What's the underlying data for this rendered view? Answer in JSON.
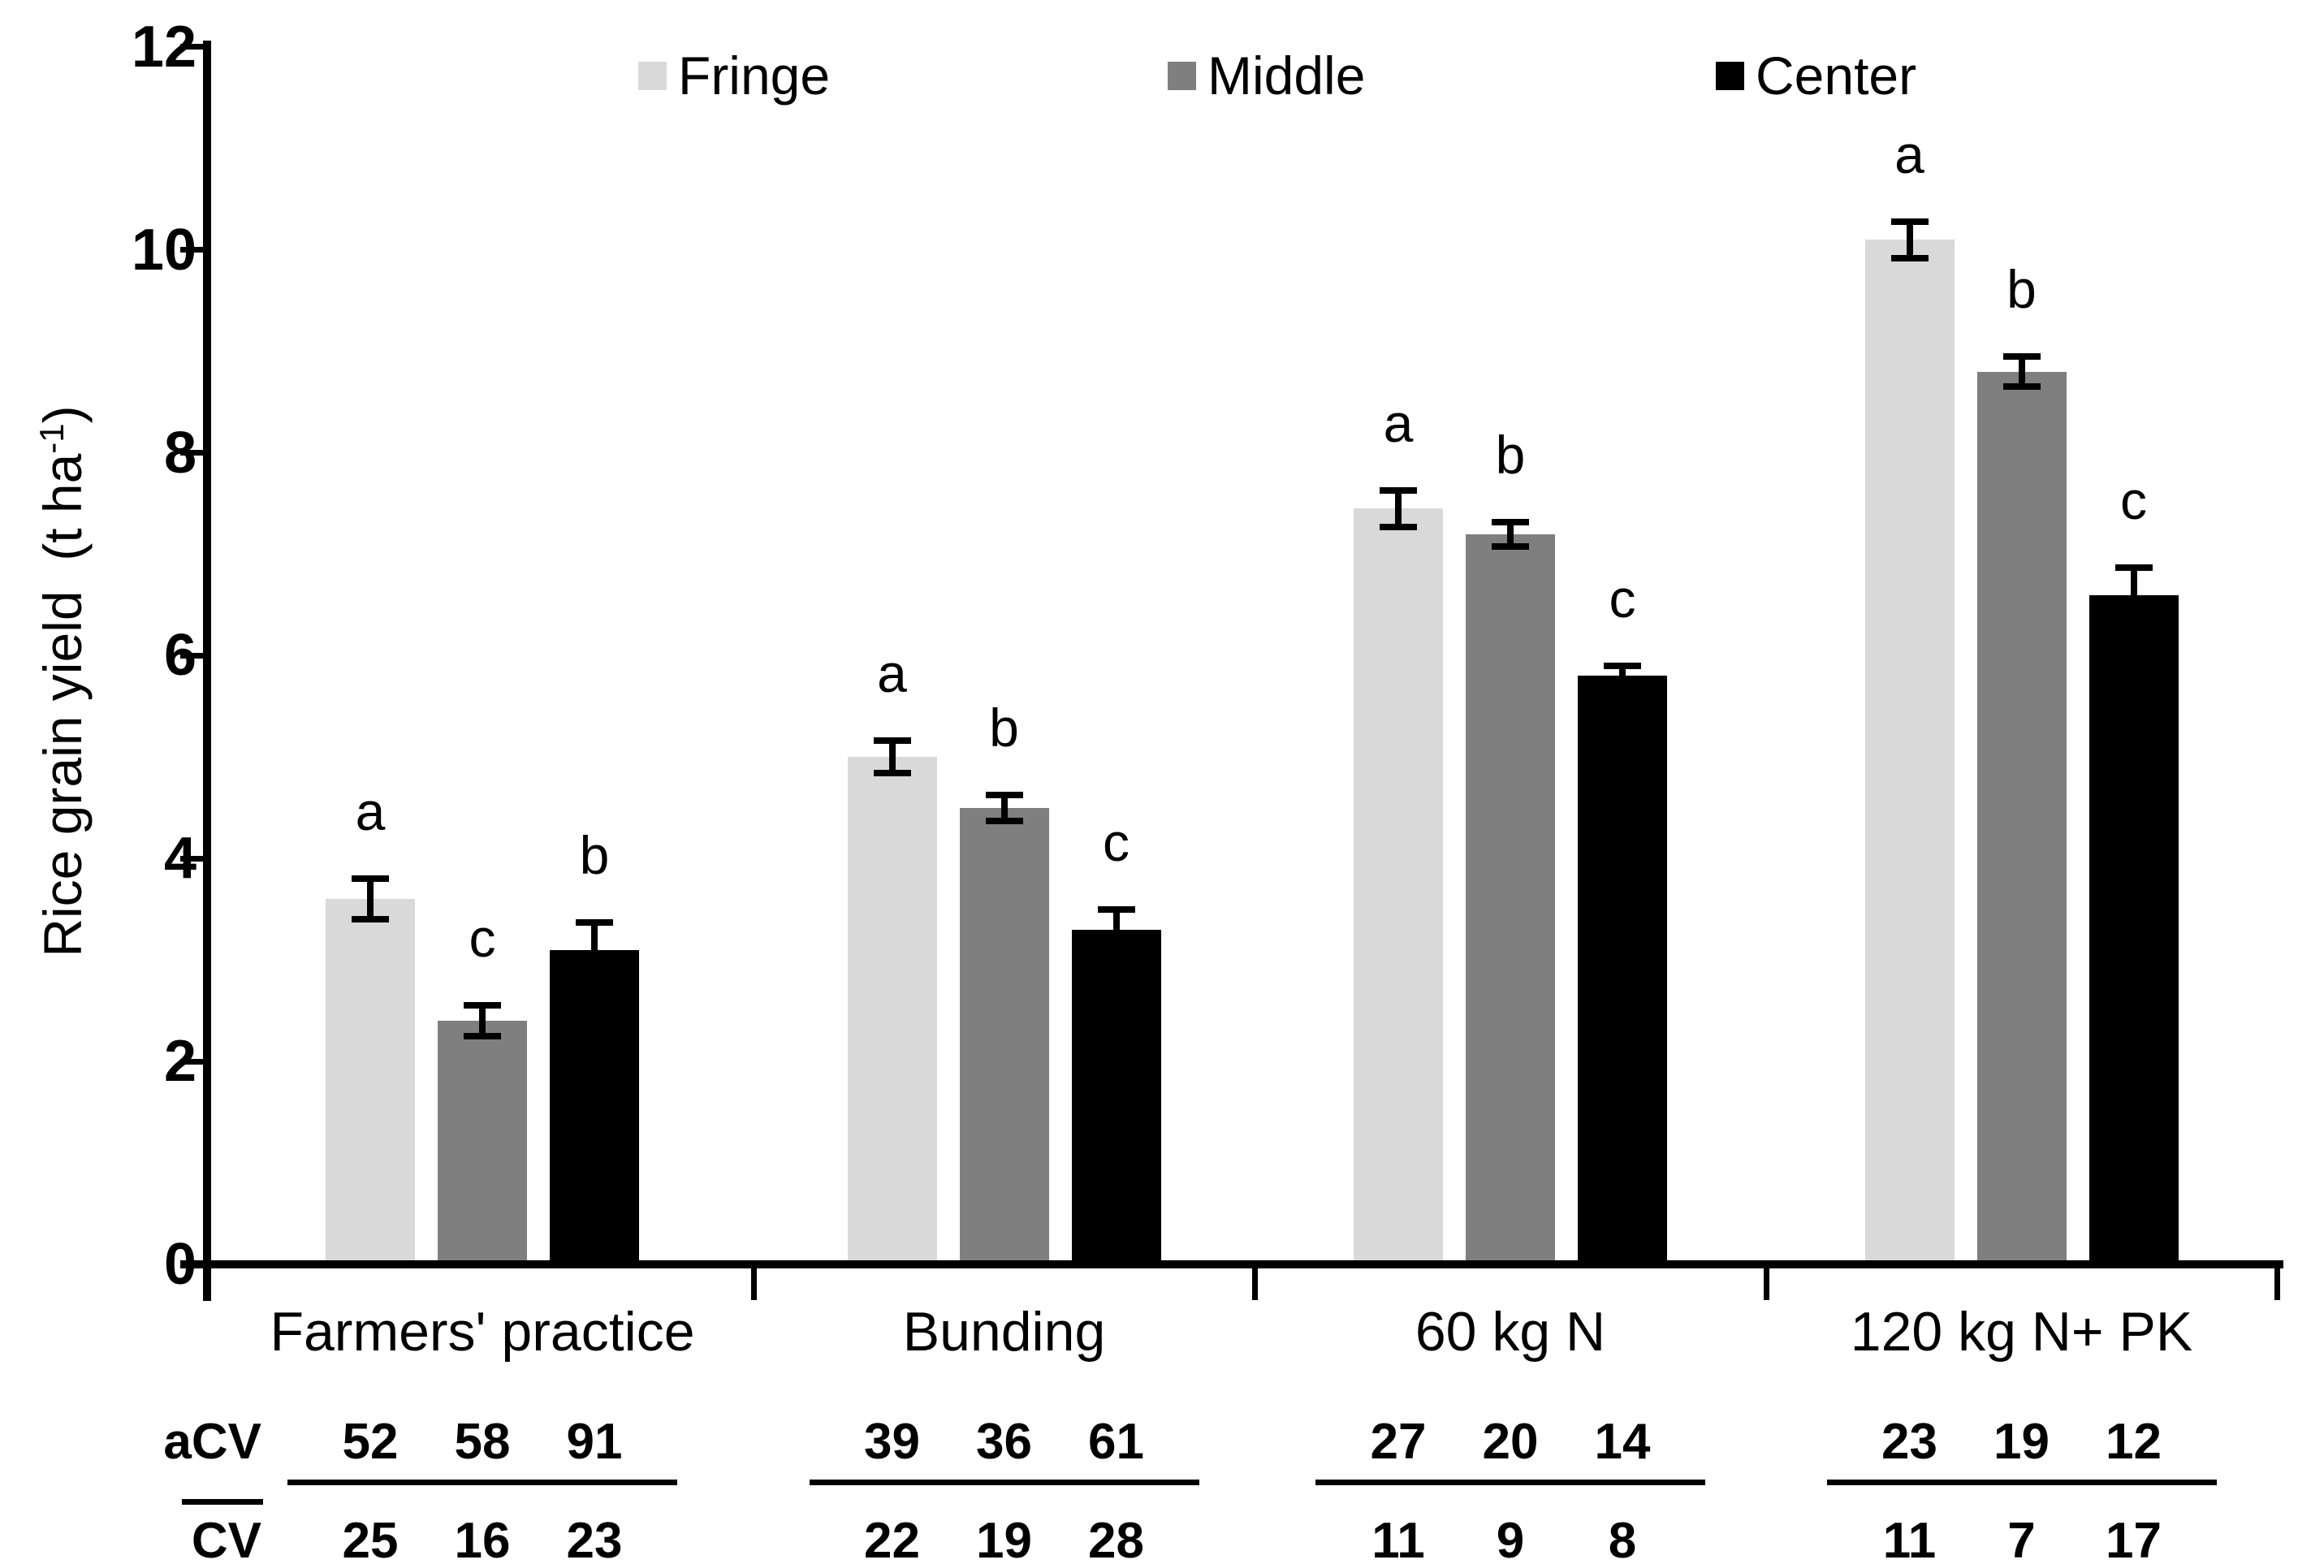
{
  "figure": {
    "background": "#ffffff",
    "text_color": "#000000"
  },
  "y_axis": {
    "label_main": "Rice grain yield  (t ha",
    "label_sup": "-1",
    "label_end": ")",
    "ticks": [
      0,
      2,
      4,
      6,
      8,
      10,
      12
    ],
    "min": 0,
    "max": 12
  },
  "chart_data": {
    "type": "bar",
    "title": "",
    "xlabel": "",
    "ylabel": "Rice grain yield (t ha-1)",
    "ylim": [
      0,
      12
    ],
    "grid": false,
    "legend_position": "top",
    "categories": [
      "Farmers' practice",
      "Bunding",
      "60 kg N",
      "120 kg N+ PK"
    ],
    "series": [
      {
        "name": "Fringe",
        "color": "#d9d9d9",
        "values": [
          3.6,
          5.0,
          7.45,
          10.1
        ],
        "errors": [
          0.2,
          0.16,
          0.18,
          0.18
        ],
        "letters": [
          "a",
          "a",
          "a",
          "a"
        ]
      },
      {
        "name": "Middle",
        "color": "#7f7f7f",
        "values": [
          2.4,
          4.5,
          7.2,
          8.8
        ],
        "errors": [
          0.15,
          0.13,
          0.12,
          0.15
        ],
        "letters": [
          "c",
          "b",
          "b",
          "b"
        ]
      },
      {
        "name": "Center",
        "color": "#000000",
        "values": [
          3.1,
          3.3,
          5.8,
          6.6
        ],
        "errors": [
          0.27,
          0.2,
          0.1,
          0.27
        ],
        "letters": [
          "b",
          "c",
          "c",
          "c"
        ]
      }
    ],
    "stat_table": {
      "row1_label": "aCV",
      "row2_label": "CV",
      "row1": [
        [
          52,
          58,
          91
        ],
        [
          39,
          36,
          61
        ],
        [
          27,
          20,
          14
        ],
        [
          23,
          19,
          12
        ]
      ],
      "row2": [
        [
          25,
          16,
          23
        ],
        [
          22,
          19,
          28
        ],
        [
          11,
          9,
          8
        ],
        [
          11,
          7,
          17
        ]
      ]
    }
  }
}
